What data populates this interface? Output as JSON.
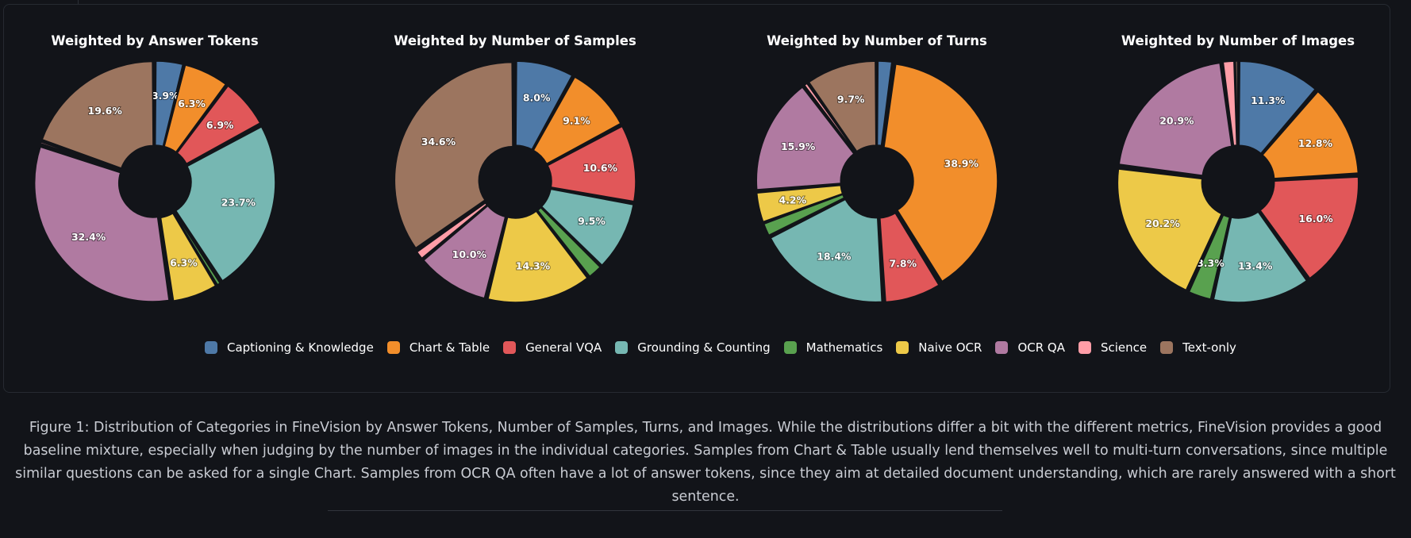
{
  "categories": [
    {
      "name": "Captioning & Knowledge",
      "color": "#4e79a7"
    },
    {
      "name": "Chart & Table",
      "color": "#f28e2b"
    },
    {
      "name": "General VQA",
      "color": "#e15759"
    },
    {
      "name": "Grounding & Counting",
      "color": "#76b7b2"
    },
    {
      "name": "Mathematics",
      "color": "#59a14f"
    },
    {
      "name": "Naive OCR",
      "color": "#edc948"
    },
    {
      "name": "OCR QA",
      "color": "#b07aa1"
    },
    {
      "name": "Science",
      "color": "#ff9da7"
    },
    {
      "name": "Text-only",
      "color": "#9c755f"
    }
  ],
  "chart_data": [
    {
      "type": "pie",
      "variant": "donut",
      "title": "Weighted by Answer Tokens",
      "categories": [
        "Captioning & Knowledge",
        "Chart & Table",
        "General VQA",
        "Grounding & Counting",
        "Mathematics",
        "Naive OCR",
        "OCR QA",
        "Science",
        "Text-only"
      ],
      "values": [
        3.9,
        6.3,
        6.9,
        23.7,
        0.6,
        6.3,
        32.4,
        0.3,
        19.6
      ],
      "labels": [
        "3.9%",
        "6.3%",
        "6.9%",
        "23.7%",
        "",
        "6.3%",
        "32.4%",
        "",
        "19.6%"
      ]
    },
    {
      "type": "pie",
      "variant": "donut",
      "title": "Weighted by Number of Samples",
      "categories": [
        "Captioning & Knowledge",
        "Chart & Table",
        "General VQA",
        "Grounding & Counting",
        "Mathematics",
        "Naive OCR",
        "OCR QA",
        "Science",
        "Text-only"
      ],
      "values": [
        8.0,
        9.1,
        10.6,
        9.5,
        2.1,
        14.3,
        10.0,
        1.3,
        34.6
      ],
      "labels": [
        "8.0%",
        "9.1%",
        "10.6%",
        "9.5%",
        "",
        "14.3%",
        "10.0%",
        "",
        "34.6%"
      ]
    },
    {
      "type": "pie",
      "variant": "donut",
      "title": "Weighted by Number of Turns",
      "categories": [
        "Captioning & Knowledge",
        "Chart & Table",
        "General VQA",
        "Grounding & Counting",
        "Mathematics",
        "Naive OCR",
        "OCR QA",
        "Science",
        "Text-only"
      ],
      "values": [
        2.1,
        38.9,
        7.8,
        18.4,
        1.9,
        4.2,
        15.9,
        0.6,
        9.7
      ],
      "labels": [
        "",
        "38.9%",
        "7.8%",
        "18.4%",
        "",
        "4.2%",
        "15.9%",
        "",
        "9.7%"
      ]
    },
    {
      "type": "pie",
      "variant": "donut",
      "title": "Weighted by Number of Images",
      "categories": [
        "Captioning & Knowledge",
        "Chart & Table",
        "General VQA",
        "Grounding & Counting",
        "Mathematics",
        "Naive OCR",
        "OCR QA",
        "Science",
        "Text-only"
      ],
      "values": [
        11.3,
        12.8,
        16.0,
        13.4,
        3.3,
        20.2,
        20.9,
        1.7,
        0.4
      ],
      "labels": [
        "11.3%",
        "12.8%",
        "16.0%",
        "13.4%",
        "3.3%",
        "20.2%",
        "20.9%",
        "",
        ""
      ]
    }
  ],
  "caption": "Figure 1: Distribution of Categories in FineVision by Answer Tokens, Number of Samples, Turns, and Images. While the distributions differ a bit with the different metrics, FineVision provides a good baseline mixture, especially when judging by the number of images in the individual categories. Samples from Chart & Table usually lend themselves well to multi-turn conversations, since multiple similar questions can be asked for a single Chart. Samples from OCR QA often have a lot of answer tokens, since they aim at detailed document understanding, which are rarely answered with a short sentence."
}
